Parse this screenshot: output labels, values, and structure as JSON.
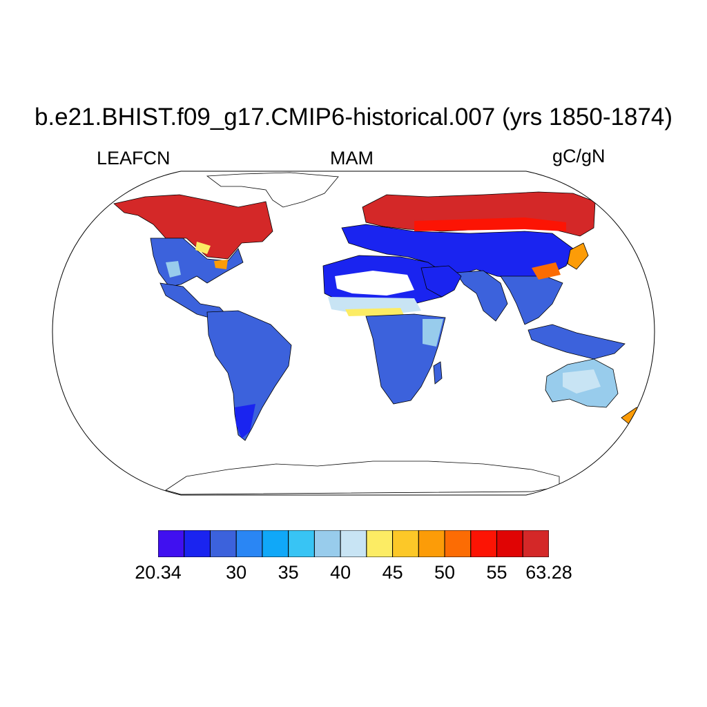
{
  "header": {
    "title": "b.e21.BHIST.f09_g17.CMIP6-historical.007 (yrs 1850-1874)",
    "left_label": "LEAFCN",
    "center_label": "MAM",
    "right_label": "gC/gN"
  },
  "colorbar": {
    "colors": [
      "#4010f0",
      "#1a24f0",
      "#3c62dc",
      "#2a86f4",
      "#10a8f8",
      "#38c4f4",
      "#98ccec",
      "#c8e4f4",
      "#fcec64",
      "#fcc828",
      "#fc9c08",
      "#fc6c04",
      "#fc1404",
      "#e00404",
      "#d42828"
    ],
    "labels": [
      "20.34",
      "30",
      "35",
      "40",
      "45",
      "50",
      "55",
      "63.28"
    ],
    "label_box_index": [
      0,
      3,
      5,
      7,
      9,
      11,
      13,
      15
    ]
  },
  "map": {
    "projection": "Robinson",
    "data_colors": {
      "high": "#d42828",
      "red": "#fc1404",
      "orange": "#fc9c08",
      "yellow": "#fcec64",
      "light": "#c8e4f4",
      "paleblue": "#98ccec",
      "mid": "#3c62dc",
      "deep": "#1a24f0",
      "violet": "#4010f0"
    }
  }
}
